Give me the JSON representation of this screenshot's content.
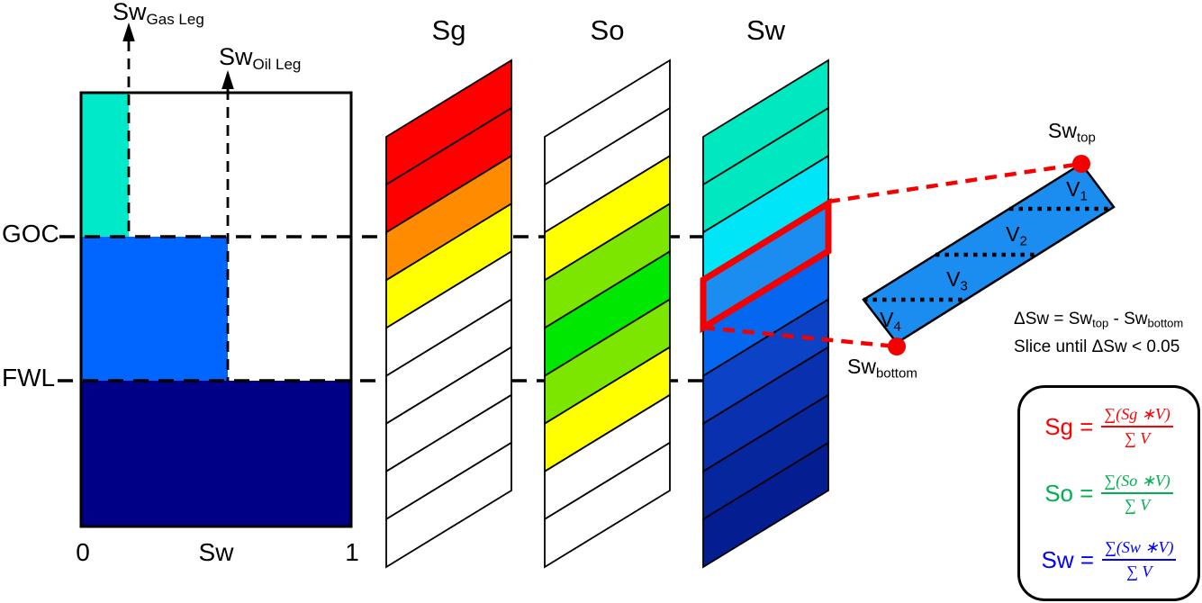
{
  "left_plot": {
    "gas_leg": {
      "base": "Sw",
      "sub": "Gas Leg"
    },
    "oil_leg": {
      "base": "Sw",
      "sub": "Oil Leg"
    },
    "goc": "GOC",
    "fwl": "FWL",
    "x_min": "0",
    "x_label": "Sw",
    "x_max": "1",
    "colors": {
      "gas": "#00E9C9",
      "oil": "#0066FF",
      "water": "#000087"
    }
  },
  "sheets": [
    {
      "label": "Sg",
      "bands": [
        "#FF0000",
        "#FF0000",
        "#FF8C00",
        "#FFFF00",
        "#FFFFFF",
        "#FFFFFF",
        "#FFFFFF",
        "#FFFFFF",
        "#FFFFFF"
      ]
    },
    {
      "label": "So",
      "bands": [
        "#FFFFFF",
        "#FFFFFF",
        "#FFFF00",
        "#7CE600",
        "#00E800",
        "#7CE600",
        "#FFFF00",
        "#FFFFFF",
        "#FFFFFF"
      ]
    },
    {
      "label": "Sw",
      "bands": [
        "#00E8C0",
        "#00E8C0",
        "#00E6F8",
        "#1B8CF0",
        "#0566F0",
        "#0B42C6",
        "#0930AE",
        "#06269E",
        "#041D90"
      ]
    }
  ],
  "highlight": {
    "sheet": "Sw",
    "band_index": 3
  },
  "colors": {
    "highlight_red": "#F40000",
    "band_stroke": "#000000"
  },
  "slice": {
    "fill": "#1B8CF0",
    "volumes": [
      {
        "base": "V",
        "sub": "1"
      },
      {
        "base": "V",
        "sub": "2"
      },
      {
        "base": "V",
        "sub": "3"
      },
      {
        "base": "V",
        "sub": "4"
      }
    ],
    "top_point": {
      "base": "Sw",
      "sub": "top"
    },
    "bottom_point": {
      "base": "Sw",
      "sub": "bottom"
    }
  },
  "annotations": {
    "delta_eq": {
      "p1": "ΔSw = Sw",
      "s1": "top",
      "p2": " - Sw",
      "s2": "bottom"
    },
    "slice_rule": "Slice until ΔSw < 0.05"
  },
  "formulas": [
    {
      "lhs": "Sg =",
      "num": "∑(Sg ∗V)",
      "den": "∑ V",
      "color": "#FF0000"
    },
    {
      "lhs": "So =",
      "num": "∑(So ∗V)",
      "den": "∑ V",
      "color": "#00B050"
    },
    {
      "lhs": "Sw =",
      "num": "∑(Sw ∗V)",
      "den": "∑ V",
      "color": "#0000FF"
    }
  ]
}
